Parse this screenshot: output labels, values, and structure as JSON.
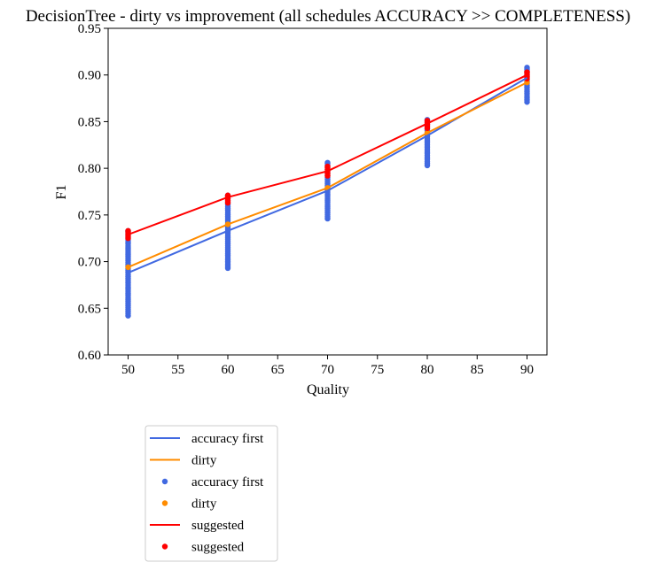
{
  "chart_data": {
    "type": "line",
    "title": "DecisionTree - dirty vs improvement (all schedules ACCURACY >> COMPLETENESS)",
    "xlabel": "Quality",
    "ylabel": "F1",
    "xlim": [
      48,
      92
    ],
    "ylim": [
      0.6,
      0.95
    ],
    "xticks": [
      50,
      55,
      60,
      65,
      70,
      75,
      80,
      85,
      90
    ],
    "xtick_labels": [
      "50",
      "55",
      "60",
      "65",
      "70",
      "75",
      "80",
      "85",
      "90"
    ],
    "yticks": [
      0.6,
      0.65,
      0.7,
      0.75,
      0.8,
      0.85,
      0.9,
      0.95
    ],
    "ytick_labels": [
      "0.60",
      "0.65",
      "0.70",
      "0.75",
      "0.80",
      "0.85",
      "0.90",
      "0.95"
    ],
    "grid": false,
    "legend_placement": "below-left",
    "x": [
      50,
      60,
      70,
      80,
      90
    ],
    "series": [
      {
        "name": "accuracy first",
        "kind": "line",
        "color": "#4169e1",
        "y": [
          0.688,
          0.733,
          0.776,
          0.835,
          0.897
        ]
      },
      {
        "name": "dirty",
        "kind": "line",
        "color": "#ff8c00",
        "y": [
          0.694,
          0.74,
          0.779,
          0.838,
          0.892
        ]
      },
      {
        "name": "suggested",
        "kind": "line",
        "color": "#ff0000",
        "y": [
          0.729,
          0.769,
          0.797,
          0.848,
          0.9
        ]
      }
    ],
    "scatter": [
      {
        "name": "accuracy first",
        "color": "#4169e1",
        "ranges": [
          {
            "x": 50,
            "ymin": 0.642,
            "ymax": 0.733
          },
          {
            "x": 60,
            "ymin": 0.693,
            "ymax": 0.771
          },
          {
            "x": 70,
            "ymin": 0.746,
            "ymax": 0.806
          },
          {
            "x": 80,
            "ymin": 0.803,
            "ymax": 0.852
          },
          {
            "x": 90,
            "ymin": 0.871,
            "ymax": 0.908
          }
        ]
      },
      {
        "name": "dirty",
        "color": "#ff8c00",
        "points": [
          {
            "x": 50,
            "y": 0.694
          },
          {
            "x": 60,
            "y": 0.74
          },
          {
            "x": 70,
            "y": 0.779
          },
          {
            "x": 80,
            "y": 0.838
          },
          {
            "x": 90,
            "y": 0.892
          }
        ]
      },
      {
        "name": "suggested",
        "color": "#ff0000",
        "ranges": [
          {
            "x": 50,
            "ymin": 0.725,
            "ymax": 0.733
          },
          {
            "x": 60,
            "ymin": 0.763,
            "ymax": 0.771
          },
          {
            "x": 70,
            "ymin": 0.792,
            "ymax": 0.802
          },
          {
            "x": 80,
            "ymin": 0.843,
            "ymax": 0.851
          },
          {
            "x": 90,
            "ymin": 0.896,
            "ymax": 0.903
          }
        ]
      }
    ],
    "legend": [
      {
        "label": "accuracy first",
        "kind": "line",
        "color": "#4169e1"
      },
      {
        "label": "dirty",
        "kind": "line",
        "color": "#ff8c00"
      },
      {
        "label": "accuracy first",
        "kind": "dot",
        "color": "#4169e1"
      },
      {
        "label": "dirty",
        "kind": "dot",
        "color": "#ff8c00"
      },
      {
        "label": "suggested",
        "kind": "line",
        "color": "#ff0000"
      },
      {
        "label": "suggested",
        "kind": "dot",
        "color": "#ff0000"
      }
    ]
  }
}
